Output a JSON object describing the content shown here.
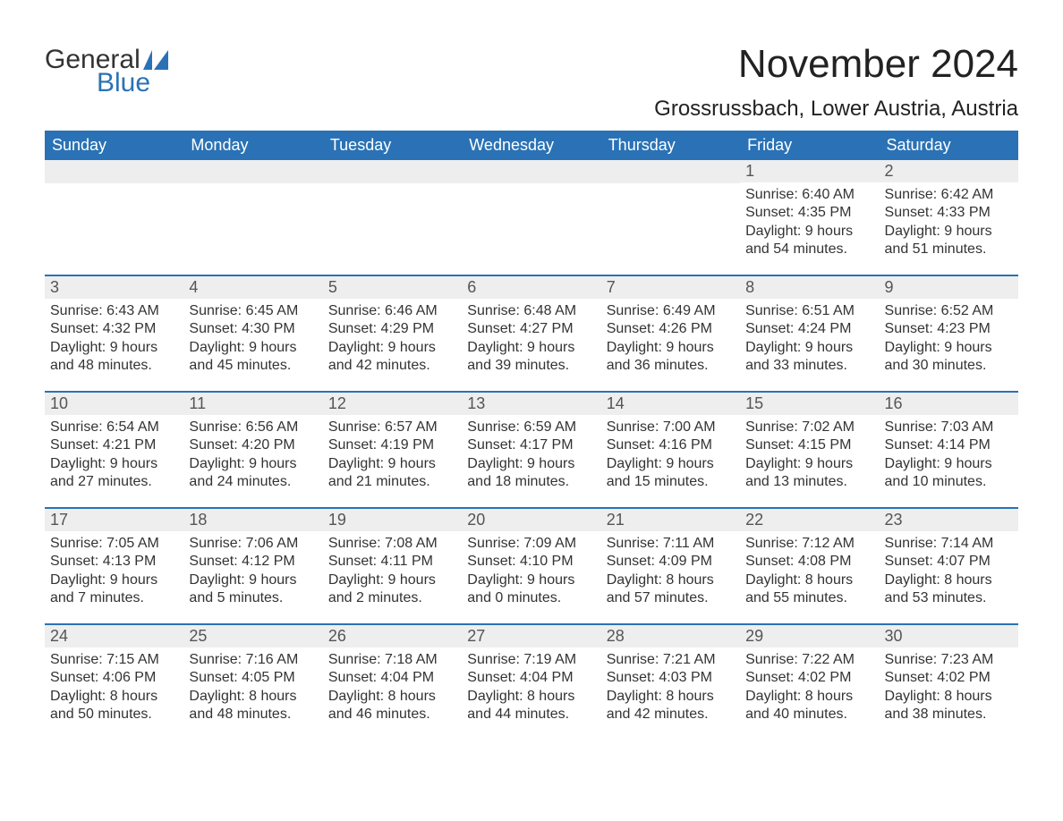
{
  "brand": {
    "word1": "General",
    "word2": "Blue",
    "color": "#2a72b5"
  },
  "title": "November 2024",
  "location": "Grossrussbach, Lower Austria, Austria",
  "colors": {
    "header_bg": "#2a72b5",
    "header_text": "#ffffff",
    "daynum_bg": "#eeeeee",
    "body_text": "#333333",
    "rule": "#2a72b5",
    "page_bg": "#ffffff"
  },
  "typography": {
    "title_fontsize": 44,
    "location_fontsize": 24,
    "dow_fontsize": 18,
    "daynum_fontsize": 18,
    "body_fontsize": 16
  },
  "layout": {
    "columns": 7,
    "rows": 5,
    "leading_blanks": 5
  },
  "days_of_week": [
    "Sunday",
    "Monday",
    "Tuesday",
    "Wednesday",
    "Thursday",
    "Friday",
    "Saturday"
  ],
  "days": [
    {
      "n": 1,
      "sunrise": "6:40 AM",
      "sunset": "4:35 PM",
      "daylight": "9 hours and 54 minutes."
    },
    {
      "n": 2,
      "sunrise": "6:42 AM",
      "sunset": "4:33 PM",
      "daylight": "9 hours and 51 minutes."
    },
    {
      "n": 3,
      "sunrise": "6:43 AM",
      "sunset": "4:32 PM",
      "daylight": "9 hours and 48 minutes."
    },
    {
      "n": 4,
      "sunrise": "6:45 AM",
      "sunset": "4:30 PM",
      "daylight": "9 hours and 45 minutes."
    },
    {
      "n": 5,
      "sunrise": "6:46 AM",
      "sunset": "4:29 PM",
      "daylight": "9 hours and 42 minutes."
    },
    {
      "n": 6,
      "sunrise": "6:48 AM",
      "sunset": "4:27 PM",
      "daylight": "9 hours and 39 minutes."
    },
    {
      "n": 7,
      "sunrise": "6:49 AM",
      "sunset": "4:26 PM",
      "daylight": "9 hours and 36 minutes."
    },
    {
      "n": 8,
      "sunrise": "6:51 AM",
      "sunset": "4:24 PM",
      "daylight": "9 hours and 33 minutes."
    },
    {
      "n": 9,
      "sunrise": "6:52 AM",
      "sunset": "4:23 PM",
      "daylight": "9 hours and 30 minutes."
    },
    {
      "n": 10,
      "sunrise": "6:54 AM",
      "sunset": "4:21 PM",
      "daylight": "9 hours and 27 minutes."
    },
    {
      "n": 11,
      "sunrise": "6:56 AM",
      "sunset": "4:20 PM",
      "daylight": "9 hours and 24 minutes."
    },
    {
      "n": 12,
      "sunrise": "6:57 AM",
      "sunset": "4:19 PM",
      "daylight": "9 hours and 21 minutes."
    },
    {
      "n": 13,
      "sunrise": "6:59 AM",
      "sunset": "4:17 PM",
      "daylight": "9 hours and 18 minutes."
    },
    {
      "n": 14,
      "sunrise": "7:00 AM",
      "sunset": "4:16 PM",
      "daylight": "9 hours and 15 minutes."
    },
    {
      "n": 15,
      "sunrise": "7:02 AM",
      "sunset": "4:15 PM",
      "daylight": "9 hours and 13 minutes."
    },
    {
      "n": 16,
      "sunrise": "7:03 AM",
      "sunset": "4:14 PM",
      "daylight": "9 hours and 10 minutes."
    },
    {
      "n": 17,
      "sunrise": "7:05 AM",
      "sunset": "4:13 PM",
      "daylight": "9 hours and 7 minutes."
    },
    {
      "n": 18,
      "sunrise": "7:06 AM",
      "sunset": "4:12 PM",
      "daylight": "9 hours and 5 minutes."
    },
    {
      "n": 19,
      "sunrise": "7:08 AM",
      "sunset": "4:11 PM",
      "daylight": "9 hours and 2 minutes."
    },
    {
      "n": 20,
      "sunrise": "7:09 AM",
      "sunset": "4:10 PM",
      "daylight": "9 hours and 0 minutes."
    },
    {
      "n": 21,
      "sunrise": "7:11 AM",
      "sunset": "4:09 PM",
      "daylight": "8 hours and 57 minutes."
    },
    {
      "n": 22,
      "sunrise": "7:12 AM",
      "sunset": "4:08 PM",
      "daylight": "8 hours and 55 minutes."
    },
    {
      "n": 23,
      "sunrise": "7:14 AM",
      "sunset": "4:07 PM",
      "daylight": "8 hours and 53 minutes."
    },
    {
      "n": 24,
      "sunrise": "7:15 AM",
      "sunset": "4:06 PM",
      "daylight": "8 hours and 50 minutes."
    },
    {
      "n": 25,
      "sunrise": "7:16 AM",
      "sunset": "4:05 PM",
      "daylight": "8 hours and 48 minutes."
    },
    {
      "n": 26,
      "sunrise": "7:18 AM",
      "sunset": "4:04 PM",
      "daylight": "8 hours and 46 minutes."
    },
    {
      "n": 27,
      "sunrise": "7:19 AM",
      "sunset": "4:04 PM",
      "daylight": "8 hours and 44 minutes."
    },
    {
      "n": 28,
      "sunrise": "7:21 AM",
      "sunset": "4:03 PM",
      "daylight": "8 hours and 42 minutes."
    },
    {
      "n": 29,
      "sunrise": "7:22 AM",
      "sunset": "4:02 PM",
      "daylight": "8 hours and 40 minutes."
    },
    {
      "n": 30,
      "sunrise": "7:23 AM",
      "sunset": "4:02 PM",
      "daylight": "8 hours and 38 minutes."
    }
  ],
  "labels": {
    "sunrise": "Sunrise:",
    "sunset": "Sunset:",
    "daylight": "Daylight:"
  }
}
